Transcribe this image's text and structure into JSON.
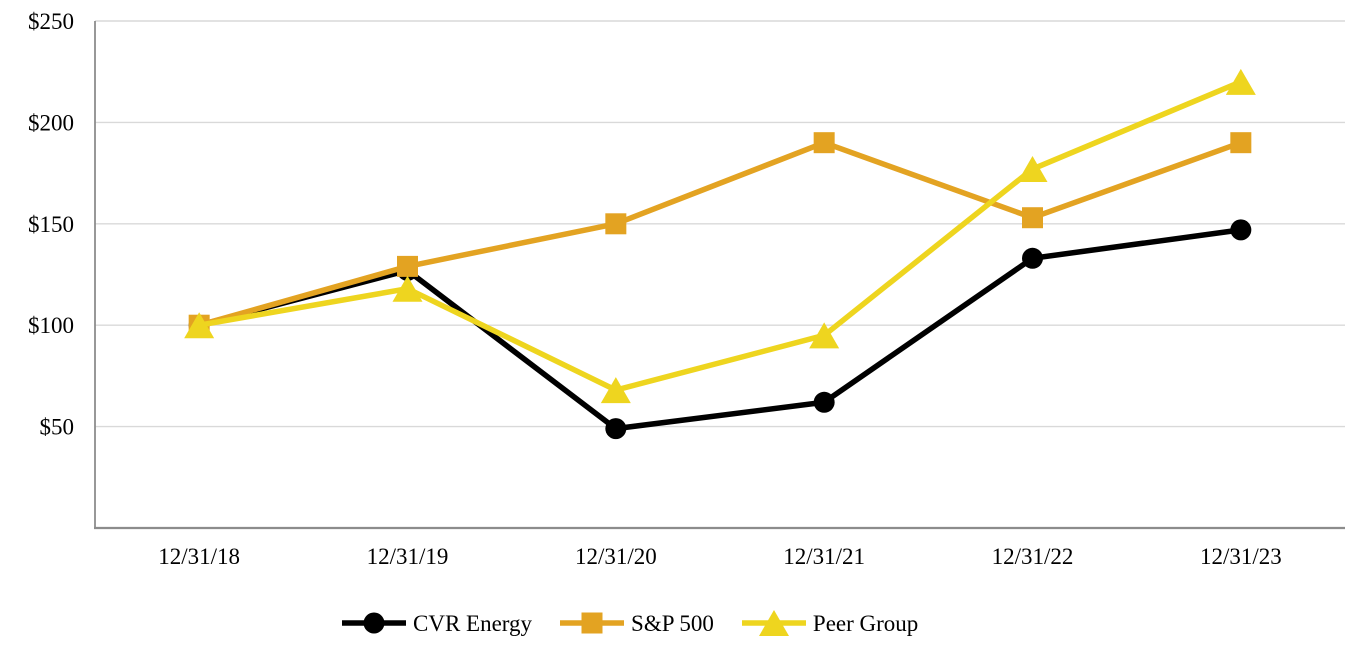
{
  "chart_data": {
    "type": "line",
    "title": "",
    "xlabel": "",
    "ylabel": "",
    "categories": [
      "12/31/18",
      "12/31/19",
      "12/31/20",
      "12/31/21",
      "12/31/22",
      "12/31/23"
    ],
    "series": [
      {
        "name": "CVR Energy",
        "marker": "circle",
        "color": "#000000",
        "values": [
          100,
          127,
          49,
          62,
          133,
          147
        ]
      },
      {
        "name": "S&P 500",
        "marker": "square",
        "color": "#E3A322",
        "values": [
          100,
          129,
          150,
          190,
          153,
          190
        ]
      },
      {
        "name": "Peer Group",
        "marker": "triangle",
        "color": "#EED51F",
        "values": [
          100,
          118,
          68,
          95,
          177,
          220
        ]
      }
    ],
    "y_ticks": [
      "$250",
      "$200",
      "$150",
      "$100",
      "$50"
    ],
    "y_tick_values": [
      250,
      200,
      150,
      100,
      50
    ],
    "ylim": [
      0,
      250
    ],
    "grid": "horizontal",
    "legend_position": "bottom"
  },
  "colors": {
    "background": "#FFFFFF",
    "gridline": "#D9D9D9",
    "axis": "#8C8C8C",
    "text": "#000000"
  }
}
